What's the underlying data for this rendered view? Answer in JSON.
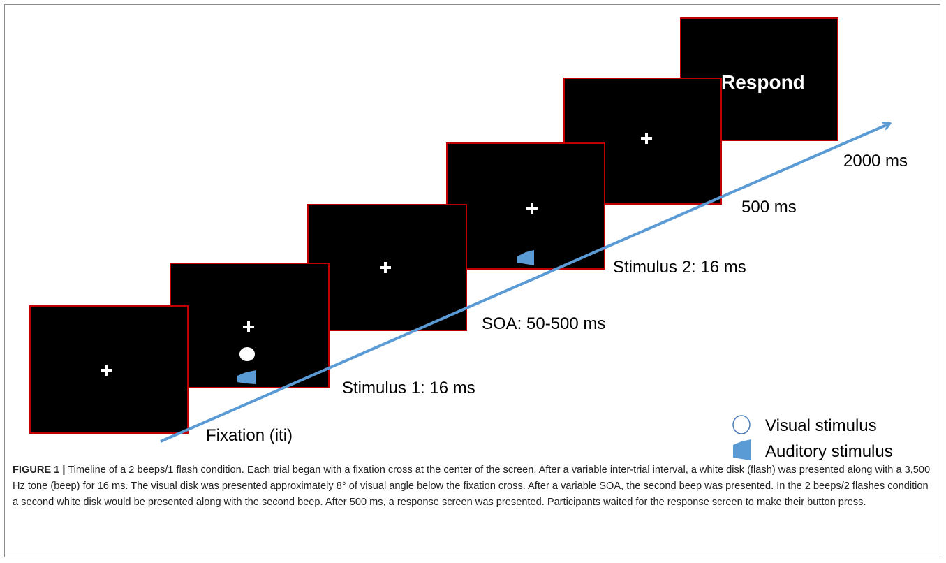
{
  "diagram": {
    "screens": [
      {
        "id": "fixation",
        "label": "Fixation (iti)",
        "shows_disk": false,
        "shows_beep": false
      },
      {
        "id": "stimulus1",
        "label": "Stimulus 1: 16 ms",
        "shows_disk": true,
        "shows_beep": true
      },
      {
        "id": "soa",
        "label": "SOA: 50-500 ms",
        "shows_disk": false,
        "shows_beep": false
      },
      {
        "id": "stimulus2",
        "label": "Stimulus 2: 16 ms",
        "shows_disk": false,
        "shows_beep": true
      },
      {
        "id": "post",
        "label": "500 ms",
        "shows_disk": false,
        "shows_beep": false
      },
      {
        "id": "response",
        "label": "2000 ms",
        "screen_text": "Respond"
      }
    ],
    "legend": {
      "visual": "Visual stimulus",
      "auditory": "Auditory stimulus"
    },
    "colors": {
      "screen_fill": "#000000",
      "screen_border": "#c00000",
      "arrow": "#5b9bd5",
      "beep": "#5b9bd5",
      "disk": "#ffffff"
    }
  },
  "caption": {
    "figure_label": "FIGURE 1 |",
    "text": "Timeline of a 2 beeps/1 flash condition. Each trial began with a fixation cross at the center of the screen. After a variable inter-trial interval, a white disk (flash) was presented along with a 3,500 Hz tone (beep) for 16 ms. The visual disk was presented approximately 8° of visual angle below the fixation cross. After a variable SOA, the second beep was presented. In the 2 beeps/2 flashes condition a second white disk would be presented along with the second beep. After 500 ms, a response screen was presented. Participants waited for the response screen to make their button press."
  }
}
